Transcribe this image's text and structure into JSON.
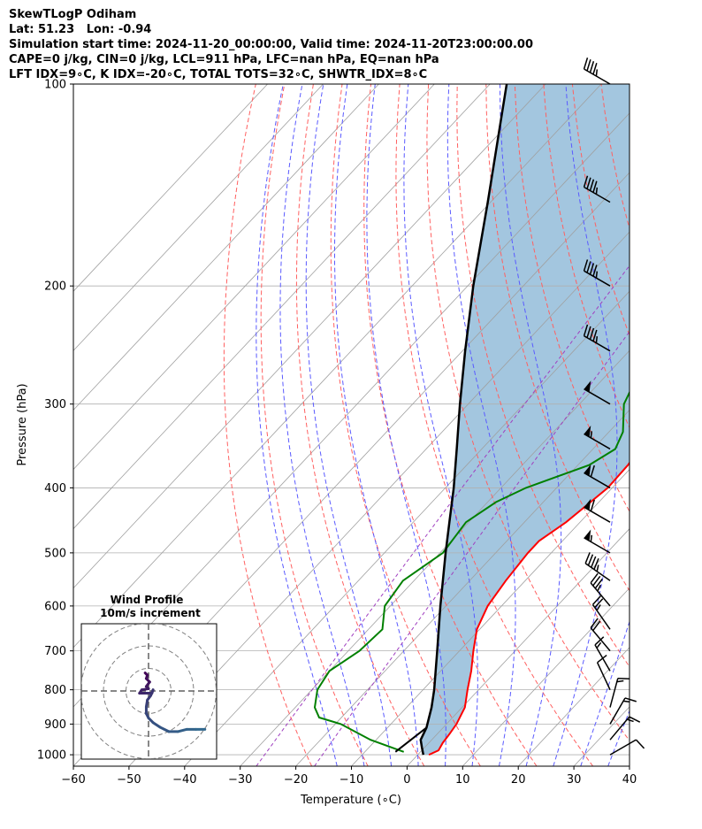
{
  "header": {
    "title": "SkewTLogP Odiham",
    "location": "Lat: 51.23   Lon: -0.94",
    "times": "Simulation start time: 2024-11-20_00:00:00, Valid time: 2024-11-20T23:00:00.00",
    "params1": "CAPE=0 j/kg, CIN=0 j/kg, LCL=911 hPa, LFC=nan hPa, EQ=nan hPa",
    "params2": "LFT IDX=9∘C, K IDX=-20∘C, TOTAL TOTS=32∘C, SHWTR_IDX=8∘C"
  },
  "chart_data": {
    "type": "skewt",
    "xlabel": "Temperature (∘C)",
    "ylabel": "Pressure (hPa)",
    "xlim": [
      -60,
      40
    ],
    "ylim": [
      1040,
      100
    ],
    "x_ticks": [
      -60,
      -50,
      -40,
      -30,
      -20,
      -10,
      0,
      10,
      20,
      30,
      40
    ],
    "x_tick_labels": [
      "−60",
      "−50",
      "−40",
      "−30",
      "−20",
      "−10",
      "0",
      "10",
      "20",
      "30",
      "40"
    ],
    "y_ticks": [
      100,
      200,
      300,
      400,
      500,
      600,
      700,
      800,
      900,
      1000
    ],
    "temperature": {
      "color": "#ff0000",
      "points": [
        [
          1000,
          2
        ],
        [
          985,
          3
        ],
        [
          960,
          2.5
        ],
        [
          930,
          2.2
        ],
        [
          900,
          1.8
        ],
        [
          850,
          0.5
        ],
        [
          800,
          -2
        ],
        [
          750,
          -4.5
        ],
        [
          700,
          -7.5
        ],
        [
          650,
          -10.5
        ],
        [
          600,
          -12.5
        ],
        [
          550,
          -13.5
        ],
        [
          500,
          -14.2
        ],
        [
          480,
          -14.2
        ],
        [
          450,
          -12.5
        ],
        [
          420,
          -11.5
        ],
        [
          400,
          -10.8
        ],
        [
          370,
          -11
        ],
        [
          340,
          -12
        ],
        [
          310,
          -13.5
        ],
        [
          280,
          -15.5
        ],
        [
          260,
          -17.5
        ],
        [
          250,
          -19
        ],
        [
          240,
          -20.5
        ],
        [
          220,
          -21.5
        ],
        [
          200,
          -24
        ],
        [
          180,
          -29
        ],
        [
          160,
          -35
        ],
        [
          140,
          -40
        ],
        [
          120,
          -45
        ],
        [
          100,
          -51.5
        ]
      ]
    },
    "dewpoint": {
      "color": "#008000",
      "points": [
        [
          990,
          -3
        ],
        [
          950,
          -11
        ],
        [
          900,
          -19
        ],
        [
          880,
          -24
        ],
        [
          850,
          -26.5
        ],
        [
          800,
          -29
        ],
        [
          750,
          -30
        ],
        [
          700,
          -28
        ],
        [
          650,
          -27.5
        ],
        [
          600,
          -31
        ],
        [
          550,
          -32
        ],
        [
          500,
          -29.5
        ],
        [
          450,
          -30.5
        ],
        [
          420,
          -28.5
        ],
        [
          400,
          -25.5
        ],
        [
          370,
          -18
        ],
        [
          350,
          -16
        ],
        [
          330,
          -17.5
        ],
        [
          300,
          -22
        ],
        [
          270,
          -24.5
        ],
        [
          240,
          -26.5
        ],
        [
          220,
          -27.5
        ],
        [
          200,
          -30
        ],
        [
          180,
          -34.5
        ],
        [
          160,
          -37.5
        ],
        [
          140,
          -40
        ],
        [
          120,
          -44
        ],
        [
          100,
          -52
        ]
      ]
    },
    "parcel": {
      "color": "#000000",
      "points": [
        [
          1000,
          1
        ],
        [
          975,
          -0.5
        ],
        [
          950,
          -2
        ],
        [
          911,
          -3
        ],
        [
          850,
          -5.5
        ],
        [
          800,
          -8
        ],
        [
          700,
          -14
        ],
        [
          600,
          -21
        ],
        [
          500,
          -29
        ],
        [
          450,
          -33.5
        ],
        [
          400,
          -38.5
        ],
        [
          350,
          -44.5
        ],
        [
          300,
          -51.5
        ],
        [
          250,
          -59.5
        ],
        [
          200,
          -69
        ],
        [
          150,
          -80.5
        ],
        [
          100,
          -97
        ]
      ]
    },
    "surface_segment": [
      [
        990,
        -4.5
      ],
      [
        911,
        -3
      ]
    ],
    "shading": "between parcel and temperature",
    "shade_color": "#a3c6df",
    "wind_barbs": [
      {
        "p": 100,
        "speed_kt": 45,
        "dir": 300
      },
      {
        "p": 150,
        "speed_kt": 45,
        "dir": 300
      },
      {
        "p": 200,
        "speed_kt": 45,
        "dir": 300
      },
      {
        "p": 250,
        "speed_kt": 45,
        "dir": 300
      },
      {
        "p": 300,
        "speed_kt": 50,
        "dir": 300
      },
      {
        "p": 350,
        "speed_kt": 55,
        "dir": 300
      },
      {
        "p": 400,
        "speed_kt": 60,
        "dir": 300
      },
      {
        "p": 450,
        "speed_kt": 60,
        "dir": 300
      },
      {
        "p": 500,
        "speed_kt": 55,
        "dir": 300
      },
      {
        "p": 550,
        "speed_kt": 45,
        "dir": 305
      },
      {
        "p": 600,
        "speed_kt": 35,
        "dir": 320
      },
      {
        "p": 650,
        "speed_kt": 25,
        "dir": 325
      },
      {
        "p": 700,
        "speed_kt": 20,
        "dir": 320
      },
      {
        "p": 750,
        "speed_kt": 15,
        "dir": 330
      },
      {
        "p": 800,
        "speed_kt": 10,
        "dir": 335
      },
      {
        "p": 850,
        "speed_kt": 15,
        "dir": 15
      },
      {
        "p": 900,
        "speed_kt": 15,
        "dir": 30
      },
      {
        "p": 950,
        "speed_kt": 15,
        "dir": 40
      },
      {
        "p": 1000,
        "speed_kt": 10,
        "dir": 60
      }
    ],
    "hodograph": {
      "title": "Wind Profile",
      "subtitle": "10m/s increment",
      "rings_ms": [
        10,
        20,
        30
      ],
      "points": [
        [
          -1.5,
          8
        ],
        [
          -0.5,
          7
        ],
        [
          -1,
          5.5
        ],
        [
          0.5,
          4
        ],
        [
          -1,
          2
        ],
        [
          0,
          1
        ],
        [
          -3,
          0.5
        ],
        [
          -4,
          -1
        ],
        [
          -1,
          -1
        ],
        [
          1.5,
          -1
        ],
        [
          2,
          0.5
        ],
        [
          1,
          -2
        ],
        [
          -0.5,
          -4
        ],
        [
          -1,
          -7
        ],
        [
          -1,
          -10
        ],
        [
          0,
          -12
        ],
        [
          2,
          -14
        ],
        [
          5,
          -16
        ],
        [
          9,
          -18
        ],
        [
          13,
          -18
        ],
        [
          17,
          -17
        ],
        [
          21,
          -17
        ],
        [
          25,
          -17
        ]
      ]
    }
  }
}
